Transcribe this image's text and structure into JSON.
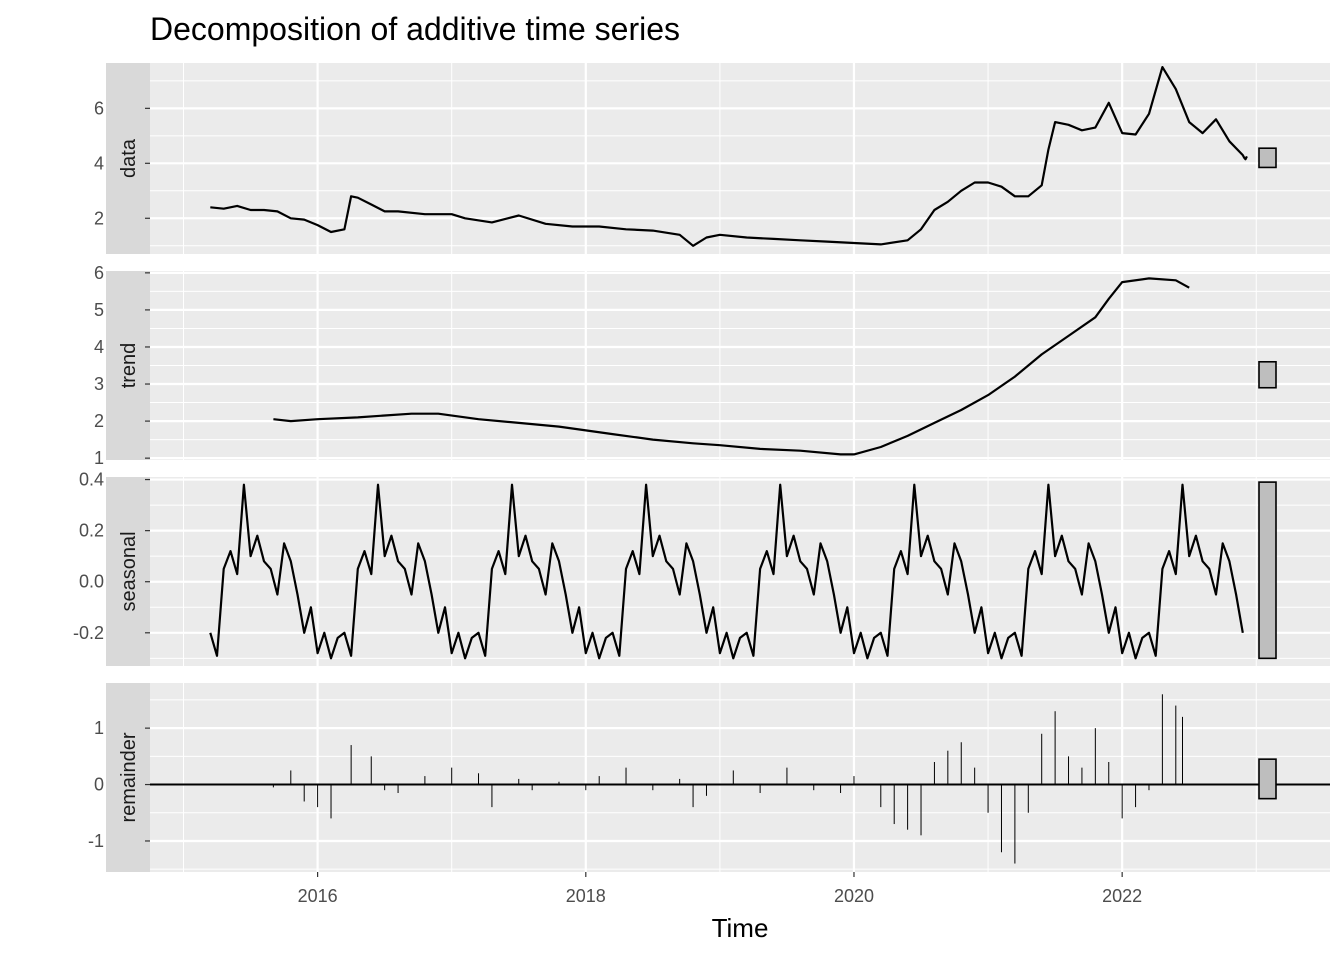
{
  "chart_data": {
    "type": "line",
    "title": "Decomposition of additive time series",
    "xlabel": "Time",
    "xlim": [
      2014.75,
      2023.55
    ],
    "x_ticks": [
      2016,
      2018,
      2020,
      2022
    ],
    "x_tick_labels": [
      "2016",
      "2018",
      "2020",
      "2022"
    ],
    "panels": [
      {
        "name": "data",
        "kind": "line",
        "ylim": [
          0.7,
          7.65
        ],
        "y_ticks": [
          2,
          4,
          6
        ],
        "y_tick_labels": [
          "2",
          "4",
          "6"
        ],
        "range_bar": [
          3.85,
          4.55
        ],
        "x": [
          2015.2,
          2015.3,
          2015.4,
          2015.5,
          2015.6,
          2015.7,
          2015.8,
          2015.9,
          2016.0,
          2016.1,
          2016.2,
          2016.25,
          2016.3,
          2016.4,
          2016.5,
          2016.6,
          2016.8,
          2017.0,
          2017.1,
          2017.3,
          2017.5,
          2017.7,
          2017.9,
          2018.1,
          2018.3,
          2018.5,
          2018.7,
          2018.8,
          2018.9,
          2019.0,
          2019.2,
          2019.4,
          2019.6,
          2019.8,
          2020.0,
          2020.2,
          2020.4,
          2020.5,
          2020.6,
          2020.7,
          2020.8,
          2020.9,
          2021.0,
          2021.1,
          2021.2,
          2021.3,
          2021.4,
          2021.45,
          2021.5,
          2021.6,
          2021.7,
          2021.8,
          2021.9,
          2022.0,
          2022.1,
          2022.2,
          2022.3,
          2022.4,
          2022.5,
          2022.6,
          2022.7,
          2022.8,
          2022.9
        ],
        "values": [
          2.4,
          2.35,
          2.45,
          2.3,
          2.3,
          2.25,
          2.0,
          1.95,
          1.75,
          1.5,
          1.6,
          2.8,
          2.75,
          2.5,
          2.25,
          2.25,
          2.15,
          2.15,
          2.0,
          1.85,
          2.1,
          1.8,
          1.7,
          1.7,
          1.6,
          1.55,
          1.4,
          1.0,
          1.3,
          1.4,
          1.3,
          1.25,
          1.2,
          1.15,
          1.1,
          1.05,
          1.2,
          1.6,
          2.3,
          2.6,
          3.0,
          3.3,
          3.3,
          3.15,
          2.8,
          2.8,
          3.2,
          4.5,
          5.5,
          5.4,
          5.2,
          5.3,
          6.2,
          5.1,
          5.05,
          5.8,
          7.5,
          6.7,
          5.5,
          5.1,
          5.6,
          4.8,
          4.3
        ],
        "extra_values": [
          4.2,
          4.15,
          4.25
        ]
      },
      {
        "name": "trend",
        "kind": "line",
        "ylim": [
          0.95,
          6.05
        ],
        "y_ticks": [
          1,
          2,
          3,
          4,
          5,
          6
        ],
        "y_tick_labels": [
          "1",
          "2",
          "3",
          "4",
          "5",
          "6"
        ],
        "range_bar": [
          2.9,
          3.6
        ],
        "x": [
          2015.67,
          2015.8,
          2016.0,
          2016.3,
          2016.5,
          2016.7,
          2016.9,
          2017.2,
          2017.5,
          2017.8,
          2018.0,
          2018.2,
          2018.5,
          2018.8,
          2019.0,
          2019.3,
          2019.6,
          2019.9,
          2020.0,
          2020.2,
          2020.4,
          2020.6,
          2020.8,
          2021.0,
          2021.2,
          2021.4,
          2021.6,
          2021.8,
          2021.9,
          2022.0,
          2022.2,
          2022.4,
          2022.5
        ],
        "values": [
          2.05,
          2.0,
          2.05,
          2.1,
          2.15,
          2.2,
          2.2,
          2.05,
          1.95,
          1.85,
          1.75,
          1.65,
          1.5,
          1.4,
          1.35,
          1.25,
          1.2,
          1.1,
          1.1,
          1.3,
          1.6,
          1.95,
          2.3,
          2.7,
          3.2,
          3.8,
          4.3,
          4.8,
          5.3,
          5.75,
          5.85,
          5.8,
          5.6
        ]
      },
      {
        "name": "seasonal",
        "kind": "line",
        "ylim": [
          -0.33,
          0.41
        ],
        "y_ticks": [
          -0.2,
          0.0,
          0.2,
          0.4
        ],
        "y_tick_labels": [
          "-0.2",
          "0.0",
          "0.2",
          "0.4"
        ],
        "range_bar": [
          -0.3,
          0.39
        ],
        "start_x": 2015.2,
        "end_x": 2022.92,
        "period_values": [
          -0.2,
          -0.29,
          0.05,
          0.12,
          0.03,
          0.38,
          0.1,
          0.18,
          0.08,
          0.05,
          -0.05,
          0.15,
          0.08,
          -0.05,
          -0.2,
          -0.1,
          -0.28,
          -0.2,
          -0.3,
          -0.22
        ]
      },
      {
        "name": "remainder",
        "kind": "bar",
        "ylim": [
          -1.55,
          1.8
        ],
        "y_ticks": [
          -1,
          0,
          1
        ],
        "y_tick_labels": [
          "-1",
          "0",
          "1"
        ],
        "range_bar": [
          -0.25,
          0.45
        ],
        "x": [
          2015.67,
          2015.8,
          2015.9,
          2016.0,
          2016.1,
          2016.25,
          2016.4,
          2016.5,
          2016.6,
          2016.8,
          2017.0,
          2017.2,
          2017.3,
          2017.5,
          2017.6,
          2017.8,
          2018.0,
          2018.1,
          2018.3,
          2018.5,
          2018.7,
          2018.8,
          2018.9,
          2019.1,
          2019.3,
          2019.5,
          2019.7,
          2019.9,
          2020.0,
          2020.2,
          2020.3,
          2020.4,
          2020.5,
          2020.6,
          2020.7,
          2020.8,
          2020.9,
          2021.0,
          2021.1,
          2021.2,
          2021.3,
          2021.4,
          2021.5,
          2021.6,
          2021.7,
          2021.8,
          2021.9,
          2022.0,
          2022.1,
          2022.2,
          2022.3,
          2022.4,
          2022.45
        ],
        "values": [
          -0.05,
          0.25,
          -0.3,
          -0.4,
          -0.6,
          0.7,
          0.5,
          -0.1,
          -0.15,
          0.15,
          0.3,
          0.2,
          -0.4,
          0.1,
          -0.1,
          0.05,
          -0.1,
          0.15,
          0.3,
          -0.1,
          0.1,
          -0.4,
          -0.2,
          0.25,
          -0.15,
          0.3,
          -0.1,
          -0.15,
          0.15,
          -0.4,
          -0.7,
          -0.8,
          -0.9,
          0.4,
          0.6,
          0.75,
          0.3,
          -0.5,
          -1.2,
          -1.4,
          -0.5,
          0.9,
          1.3,
          0.5,
          0.3,
          1.0,
          0.4,
          -0.6,
          -0.4,
          -0.1,
          1.6,
          1.4,
          1.2
        ]
      }
    ]
  }
}
